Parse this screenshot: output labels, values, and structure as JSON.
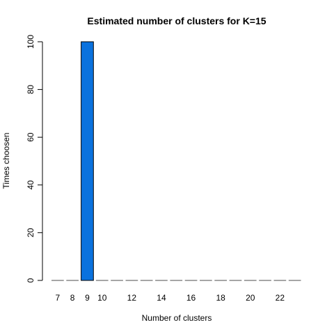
{
  "chart_data": {
    "type": "bar",
    "title": "Estimated number of clusters for K=15",
    "xlabel": "Number of clusters",
    "ylabel": "Times choosen",
    "categories": [
      7,
      8,
      9,
      10,
      11,
      12,
      13,
      14,
      15,
      16,
      17,
      18,
      19,
      20,
      21,
      22,
      23
    ],
    "values": [
      0,
      0,
      100,
      0,
      0,
      0,
      0,
      0,
      0,
      0,
      0,
      0,
      0,
      0,
      0,
      0,
      0
    ],
    "x_tick_labels": [
      "7",
      "8",
      "9",
      "10",
      "12",
      "14",
      "16",
      "18",
      "20",
      "22"
    ],
    "y_ticks": [
      0,
      20,
      40,
      60,
      80,
      100
    ],
    "ylim": [
      0,
      100
    ],
    "grid": false,
    "bar_color": "#0a72de",
    "zero_bar_color": "#888888"
  }
}
